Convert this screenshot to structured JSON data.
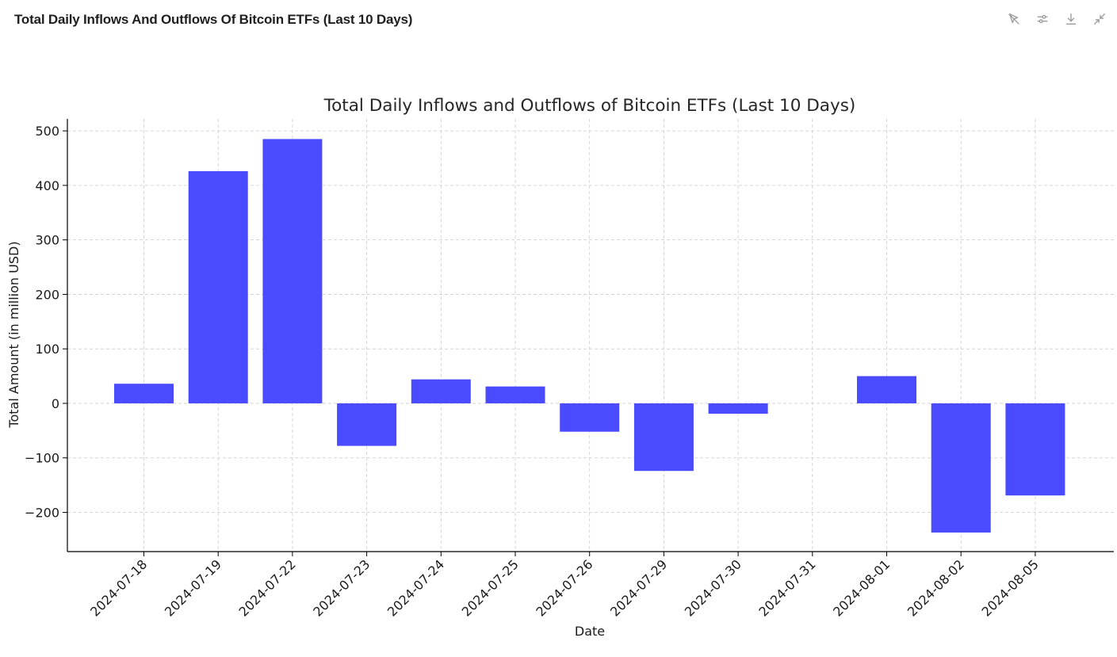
{
  "header": {
    "title": "Total Daily Inflows And Outflows Of Bitcoin ETFs (Last 10 Days)"
  },
  "toolbar": {
    "icons": [
      "cursor-off-icon",
      "sliders-icon",
      "download-icon",
      "collapse-icon"
    ]
  },
  "colors": {
    "bar": "#4a4aff",
    "grid": "#cccccc",
    "axis": "#000000"
  },
  "chart_data": {
    "type": "bar",
    "title": "Total Daily Inflows and Outflows of Bitcoin ETFs (Last 10 Days)",
    "xlabel": "Date",
    "ylabel": "Total Amount (in million USD)",
    "categories": [
      "2024-07-18",
      "2024-07-19",
      "2024-07-22",
      "2024-07-23",
      "2024-07-24",
      "2024-07-25",
      "2024-07-26",
      "2024-07-29",
      "2024-07-30",
      "2024-07-31",
      "2024-08-01",
      "2024-08-02",
      "2024-08-05"
    ],
    "values": [
      36,
      426,
      485,
      -78,
      44,
      31,
      -52,
      -124,
      -19,
      0,
      50,
      -237,
      -169
    ],
    "ylim": [
      -272,
      522
    ],
    "yticks": [
      -200,
      -100,
      0,
      100,
      200,
      300,
      400,
      500
    ],
    "ytick_labels": [
      "−200",
      "−100",
      "0",
      "100",
      "200",
      "300",
      "400",
      "500"
    ],
    "grid": true,
    "legend": "none"
  }
}
